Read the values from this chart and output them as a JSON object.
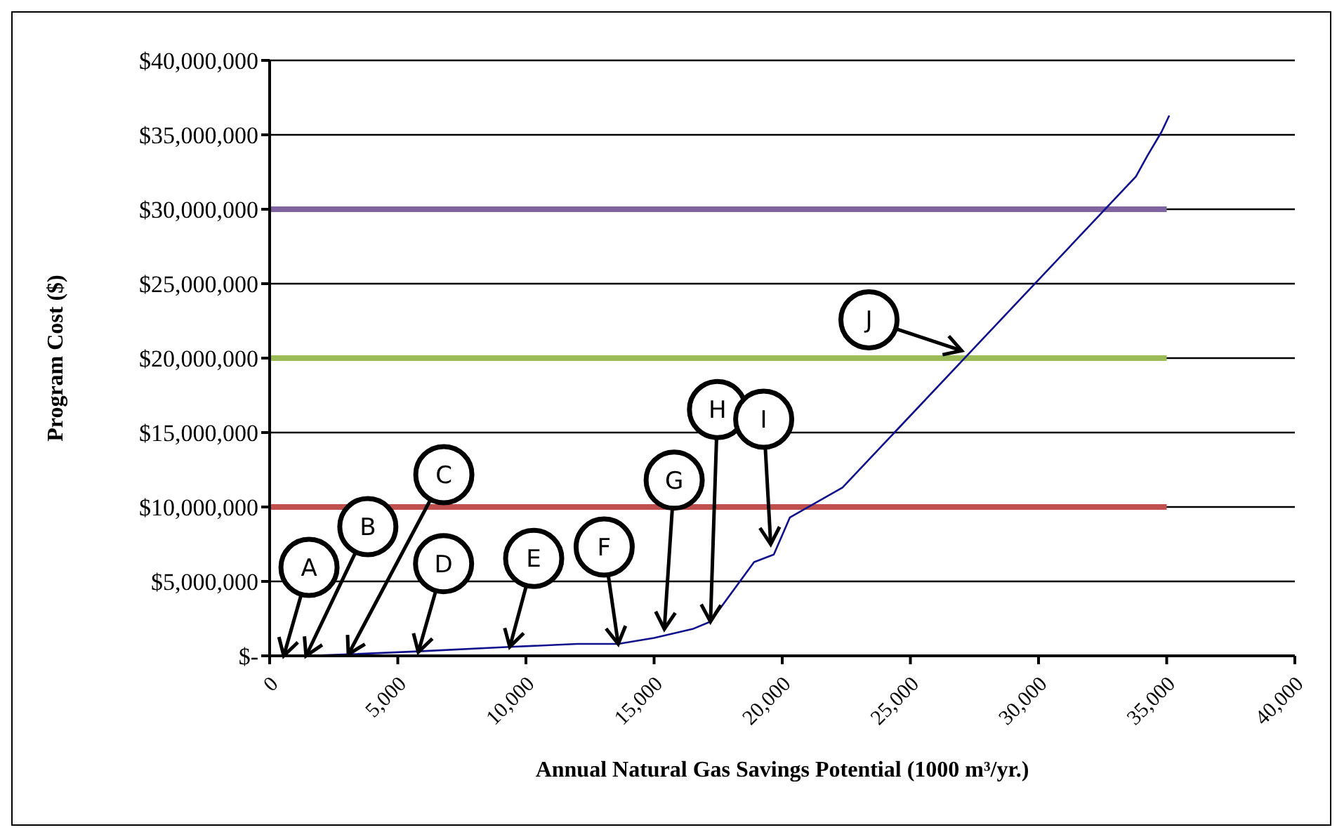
{
  "chart_data": {
    "type": "line",
    "xlabel": "Annual Natural Gas Savings Potential (1000 m³/yr.)",
    "ylabel": "Program Cost ($)",
    "xlim": [
      0,
      40000
    ],
    "xticks": [
      {
        "value": 0,
        "label": "0"
      },
      {
        "value": 5000,
        "label": "5,000"
      },
      {
        "value": 10000,
        "label": "10,000"
      },
      {
        "value": 15000,
        "label": "15,000"
      },
      {
        "value": 20000,
        "label": "20,000"
      },
      {
        "value": 25000,
        "label": "25,000"
      },
      {
        "value": 30000,
        "label": "30,000"
      },
      {
        "value": 35000,
        "label": "35,000"
      },
      {
        "value": 40000,
        "label": "40,000"
      }
    ],
    "ylim": [
      0,
      40000000
    ],
    "yticks": [
      {
        "value": 0,
        "label": "$-"
      },
      {
        "value": 5000000,
        "label": "$5,000,000"
      },
      {
        "value": 10000000,
        "label": "$10,000,000"
      },
      {
        "value": 15000000,
        "label": "$15,000,000"
      },
      {
        "value": 20000000,
        "label": "$20,000,000"
      },
      {
        "value": 25000000,
        "label": "$25,000,000"
      },
      {
        "value": 30000000,
        "label": "$30,000,000"
      },
      {
        "value": 35000000,
        "label": "$35,000,000"
      },
      {
        "value": 40000000,
        "label": "$40,000,000"
      }
    ],
    "grid": "y",
    "marker": "none",
    "series": [
      {
        "color": "#10108c",
        "x": [
          0,
          550,
          1420,
          3070,
          5800,
          9370,
          12000,
          13600,
          15000,
          16500,
          17200,
          18900,
          19670,
          20300,
          22350,
          33800,
          34250,
          34800,
          35100
        ],
        "values": [
          0,
          0,
          0,
          100000,
          300000,
          600000,
          800000,
          800000,
          1200000,
          1800000,
          2300000,
          6300000,
          6800000,
          9300000,
          11300000,
          32200000,
          33600000,
          35200000,
          36300000
        ]
      },
      {
        "color": "#c0504d",
        "x": [
          0,
          35000
        ],
        "values": [
          10000000,
          10000000
        ]
      },
      {
        "color": "#9bbb59",
        "x": [
          0,
          35000
        ],
        "values": [
          20000000,
          20000000
        ]
      },
      {
        "color": "#8064a2",
        "x": [
          0,
          35000
        ],
        "values": [
          30000000,
          30000000
        ]
      }
    ],
    "annotations": [
      {
        "text": "A",
        "x": 550,
        "y": 0
      },
      {
        "text": "B",
        "x": 1420,
        "y": 0
      },
      {
        "text": "C",
        "x": 3070,
        "y": 100000
      },
      {
        "text": "D",
        "x": 5800,
        "y": 250000
      },
      {
        "text": "E",
        "x": 9370,
        "y": 600000
      },
      {
        "text": "F",
        "x": 13600,
        "y": 800000
      },
      {
        "text": "G",
        "x": 15400,
        "y": 1800000
      },
      {
        "text": "H",
        "x": 17200,
        "y": 2300000
      },
      {
        "text": "I",
        "x": 19550,
        "y": 7500000
      },
      {
        "text": "J",
        "x": 27000,
        "y": 20500000
      }
    ]
  }
}
